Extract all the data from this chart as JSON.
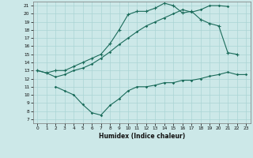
{
  "xlabel": "Humidex (Indice chaleur)",
  "bg_color": "#cce8e8",
  "grid_color": "#aad4d4",
  "line_color": "#1a6b5a",
  "xlim": [
    -0.5,
    23.5
  ],
  "ylim": [
    6.5,
    21.5
  ],
  "xticks": [
    0,
    1,
    2,
    3,
    4,
    5,
    6,
    7,
    8,
    9,
    10,
    11,
    12,
    13,
    14,
    15,
    16,
    17,
    18,
    19,
    20,
    21,
    22,
    23
  ],
  "yticks": [
    7,
    8,
    9,
    10,
    11,
    12,
    13,
    14,
    15,
    16,
    17,
    18,
    19,
    20,
    21
  ],
  "line1_x": [
    0,
    1,
    2,
    3,
    4,
    5,
    6,
    7,
    8,
    9,
    10,
    11,
    12,
    13,
    14,
    15,
    16,
    17,
    18,
    19,
    20,
    21
  ],
  "line1_y": [
    13,
    12.7,
    12.2,
    12.5,
    13.0,
    13.3,
    13.8,
    14.5,
    15.3,
    16.2,
    17.0,
    17.8,
    18.5,
    19.0,
    19.5,
    20.0,
    20.5,
    20.2,
    20.5,
    21.0,
    21.0,
    20.9
  ],
  "line2_x": [
    0,
    1,
    2,
    3,
    4,
    5,
    6,
    7,
    8,
    9,
    10,
    11,
    12,
    13,
    14,
    15,
    16,
    17,
    18,
    19,
    20,
    21,
    22
  ],
  "line2_y": [
    13,
    12.7,
    13.0,
    13.0,
    13.5,
    14.0,
    14.5,
    15.0,
    16.3,
    18.0,
    19.9,
    20.3,
    20.3,
    20.7,
    21.3,
    21.0,
    20.1,
    20.3,
    19.3,
    18.8,
    18.5,
    15.2,
    15.0
  ],
  "line3_x": [
    2,
    3,
    4,
    5,
    6,
    7,
    8,
    9,
    10,
    11,
    12,
    13,
    14,
    15,
    16,
    17,
    18,
    19,
    20,
    21,
    22,
    23
  ],
  "line3_y": [
    11.0,
    10.5,
    10.0,
    8.8,
    7.8,
    7.5,
    8.7,
    9.5,
    10.5,
    11.0,
    11.0,
    11.2,
    11.5,
    11.5,
    11.8,
    11.8,
    12.0,
    12.3,
    12.5,
    12.8,
    12.5,
    12.5
  ]
}
